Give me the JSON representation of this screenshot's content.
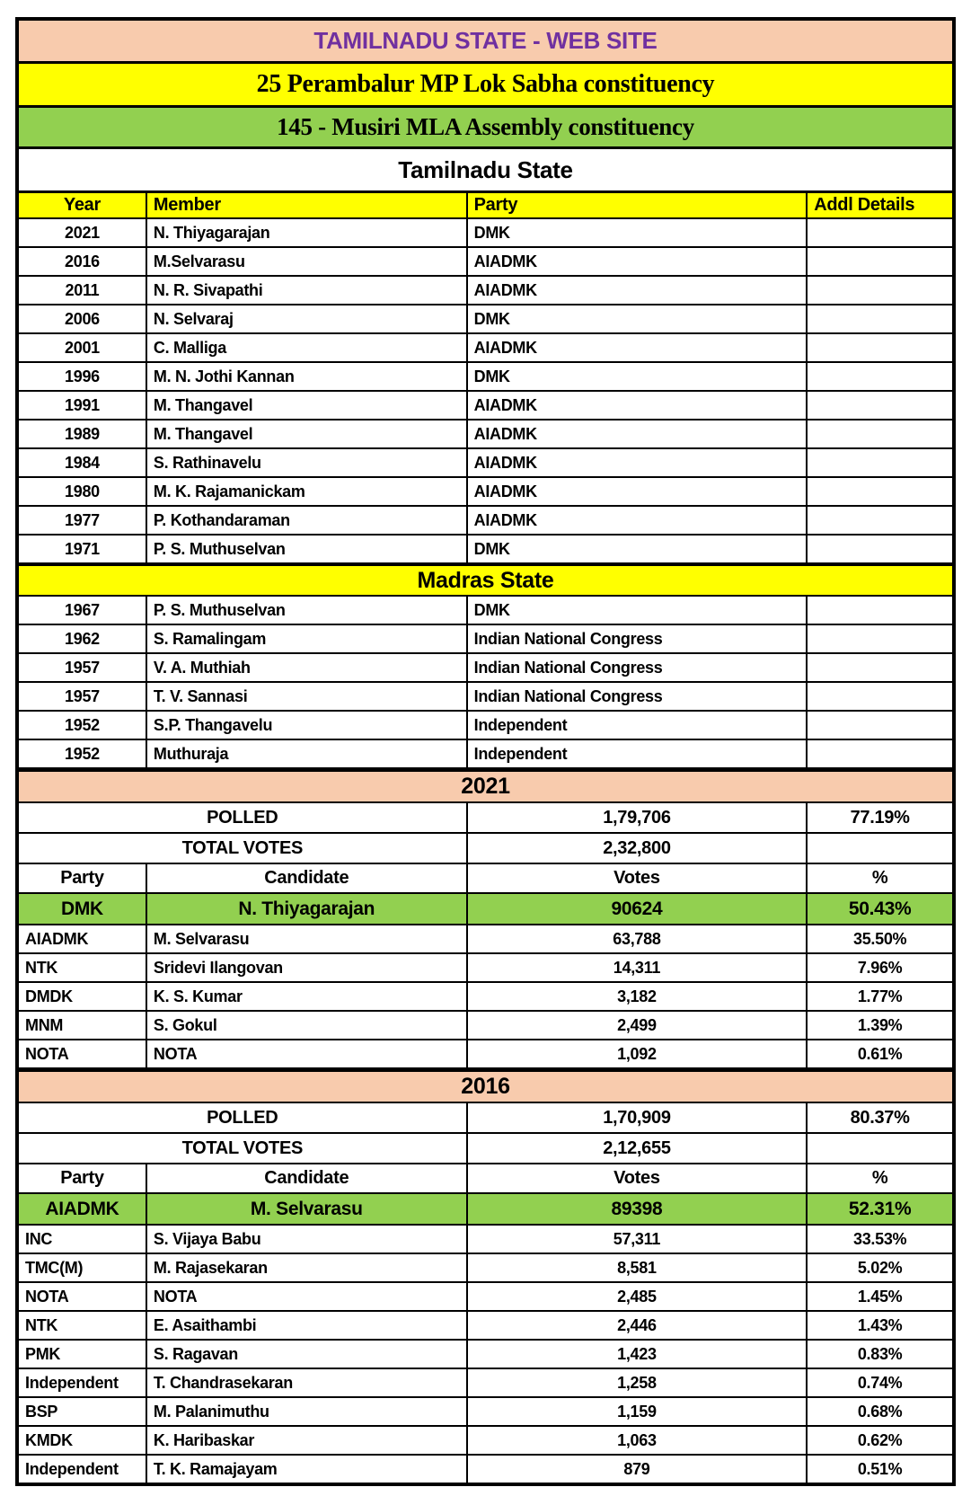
{
  "colors": {
    "banner_peach": "#F8CBAD",
    "banner_yellow": "#FFFF00",
    "winner_green": "#92D050",
    "title_purple": "#7030A0",
    "border_black": "#000000"
  },
  "header": {
    "site_title": "TAMILNADU STATE - WEB SITE",
    "mp_constituency": "25 Perambalur MP Lok Sabha constituency",
    "mla_constituency": "145 - Musiri MLA Assembly constituency"
  },
  "members": {
    "columns": {
      "year": "Year",
      "member": "Member",
      "party": "Party",
      "addl": "Addl Details"
    },
    "tamilnadu_label": "Tamilnadu State",
    "tamilnadu_rows": [
      {
        "year": "2021",
        "member": "N. Thiyagarajan",
        "party": "DMK"
      },
      {
        "year": "2016",
        "member": "M.Selvarasu",
        "party": "AIADMK"
      },
      {
        "year": "2011",
        "member": "N. R. Sivapathi",
        "party": "AIADMK"
      },
      {
        "year": "2006",
        "member": "N. Selvaraj",
        "party": "DMK"
      },
      {
        "year": "2001",
        "member": "C. Malliga",
        "party": "AIADMK"
      },
      {
        "year": "1996",
        "member": "M. N. Jothi Kannan",
        "party": "DMK"
      },
      {
        "year": "1991",
        "member": "M. Thangavel",
        "party": "AIADMK"
      },
      {
        "year": "1989",
        "member": "M. Thangavel",
        "party": "AIADMK"
      },
      {
        "year": "1984",
        "member": "S. Rathinavelu",
        "party": "AIADMK"
      },
      {
        "year": "1980",
        "member": "M. K. Rajamanickam",
        "party": "AIADMK"
      },
      {
        "year": "1977",
        "member": "P. Kothandaraman",
        "party": "AIADMK"
      },
      {
        "year": "1971",
        "member": "P. S. Muthuselvan",
        "party": "DMK"
      }
    ],
    "madras_label": "Madras State",
    "madras_rows": [
      {
        "year": "1967",
        "member": "P. S. Muthuselvan",
        "party": "DMK"
      },
      {
        "year": "1962",
        "member": "S. Ramalingam",
        "party": "Indian National Congress"
      },
      {
        "year": "1957",
        "member": "V. A. Muthiah",
        "party": "Indian National Congress"
      },
      {
        "year": "1957",
        "member": "T. V. Sannasi",
        "party": "Indian National Congress"
      },
      {
        "year": "1952",
        "member": "S.P. Thangavelu",
        "party": "Independent"
      },
      {
        "year": "1952",
        "member": "Muthuraja",
        "party": "Independent"
      }
    ]
  },
  "elections": [
    {
      "year": "2021",
      "polled_label": "POLLED",
      "polled_votes": "1,79,706",
      "polled_pct": "77.19%",
      "total_label": "TOTAL VOTES",
      "total_votes": "2,32,800",
      "columns": {
        "party": "Party",
        "candidate": "Candidate",
        "votes": "Votes",
        "pct": "%"
      },
      "winner": {
        "party": "DMK",
        "candidate": "N. Thiyagarajan",
        "votes": "90624",
        "pct": "50.43%"
      },
      "rows": [
        {
          "party": "AIADMK",
          "candidate": "M. Selvarasu",
          "votes": "63,788",
          "pct": "35.50%"
        },
        {
          "party": "NTK",
          "candidate": "Sridevi Ilangovan",
          "votes": "14,311",
          "pct": "7.96%"
        },
        {
          "party": "DMDK",
          "candidate": "K. S. Kumar",
          "votes": "3,182",
          "pct": "1.77%"
        },
        {
          "party": "MNM",
          "candidate": "S. Gokul",
          "votes": "2,499",
          "pct": "1.39%"
        },
        {
          "party": "NOTA",
          "candidate": "NOTA",
          "votes": "1,092",
          "pct": "0.61%"
        }
      ]
    },
    {
      "year": "2016",
      "polled_label": "POLLED",
      "polled_votes": "1,70,909",
      "polled_pct": "80.37%",
      "total_label": "TOTAL VOTES",
      "total_votes": "2,12,655",
      "columns": {
        "party": "Party",
        "candidate": "Candidate",
        "votes": "Votes",
        "pct": "%"
      },
      "winner": {
        "party": "AIADMK",
        "candidate": "M. Selvarasu",
        "votes": "89398",
        "pct": "52.31%"
      },
      "rows": [
        {
          "party": "INC",
          "candidate": "S. Vijaya Babu",
          "votes": "57,311",
          "pct": "33.53%"
        },
        {
          "party": "TMC(M)",
          "candidate": "M. Rajasekaran",
          "votes": "8,581",
          "pct": "5.02%"
        },
        {
          "party": "NOTA",
          "candidate": "NOTA",
          "votes": "2,485",
          "pct": "1.45%"
        },
        {
          "party": "NTK",
          "candidate": "E. Asaithambi",
          "votes": "2,446",
          "pct": "1.43%"
        },
        {
          "party": "PMK",
          "candidate": "S. Ragavan",
          "votes": "1,423",
          "pct": "0.83%"
        },
        {
          "party": "Independent",
          "candidate": "T. Chandrasekaran",
          "votes": "1,258",
          "pct": "0.74%"
        },
        {
          "party": "BSP",
          "candidate": "M. Palanimuthu",
          "votes": "1,159",
          "pct": "0.68%"
        },
        {
          "party": "KMDK",
          "candidate": "K. Haribaskar",
          "votes": "1,063",
          "pct": "0.62%"
        },
        {
          "party": "Independent",
          "candidate": "T. K. Ramajayam",
          "votes": "879",
          "pct": "0.51%"
        }
      ]
    }
  ]
}
